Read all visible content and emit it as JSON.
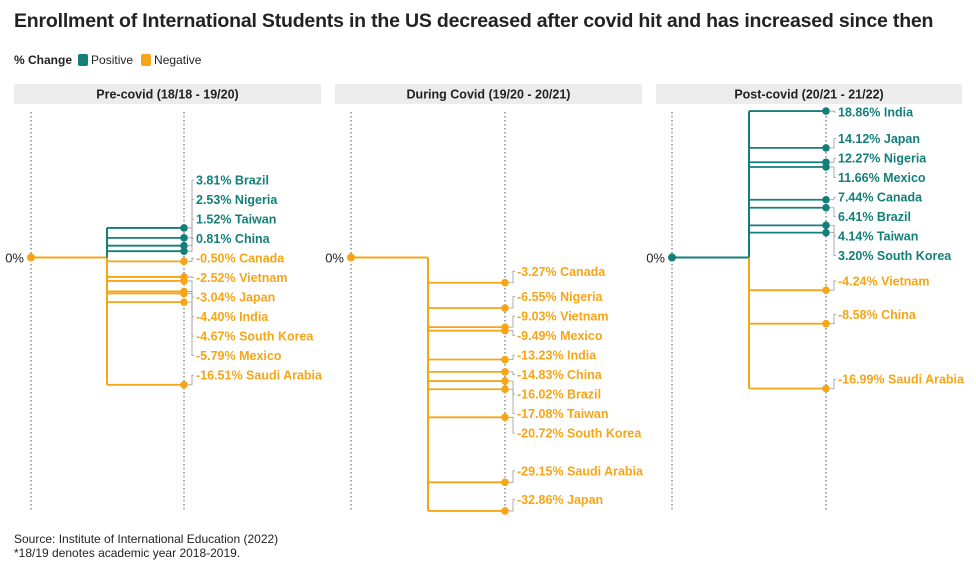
{
  "title": "Enrollment of International Students in the US decreased after covid hit and has increased since then",
  "legend": {
    "title": "% Change",
    "items": [
      {
        "label": "Positive",
        "color": "#137f7a"
      },
      {
        "label": "Negative",
        "color": "#f6a517"
      }
    ]
  },
  "colors": {
    "positive": "#137f7a",
    "negative": "#f6a517",
    "panel_header_bg": "#ececec",
    "gridline": "#7a7a7a"
  },
  "footer": {
    "source": "Source: Institute of International Education (2022)",
    "note": "*18/19 denotes academic year 2018-2019."
  },
  "chart_data": [
    {
      "type": "tree",
      "title": "Pre-covid (18/18 - 19/20)",
      "root_label": "0%",
      "series": [
        {
          "country": "Brazil",
          "value": 3.81,
          "label": "3.81% Brazil"
        },
        {
          "country": "Nigeria",
          "value": 2.53,
          "label": "2.53% Nigeria"
        },
        {
          "country": "Taiwan",
          "value": 1.52,
          "label": "1.52% Taiwan"
        },
        {
          "country": "China",
          "value": 0.81,
          "label": "0.81% China"
        },
        {
          "country": "Canada",
          "value": -0.5,
          "label": "-0.50% Canada"
        },
        {
          "country": "Vietnam",
          "value": -2.52,
          "label": "-2.52% Vietnam"
        },
        {
          "country": "Japan",
          "value": -3.04,
          "label": "-3.04% Japan"
        },
        {
          "country": "India",
          "value": -4.4,
          "label": "-4.40% India"
        },
        {
          "country": "South Korea",
          "value": -4.67,
          "label": "-4.67% South Korea"
        },
        {
          "country": "Mexico",
          "value": -5.79,
          "label": "-5.79% Mexico"
        },
        {
          "country": "Saudi Arabia",
          "value": -16.51,
          "label": "-16.51% Saudi Arabia"
        }
      ]
    },
    {
      "type": "tree",
      "title": "During Covid (19/20 - 20/21)",
      "root_label": "0%",
      "series": [
        {
          "country": "Canada",
          "value": -3.27,
          "label": "-3.27% Canada"
        },
        {
          "country": "Nigeria",
          "value": -6.55,
          "label": "-6.55% Nigeria"
        },
        {
          "country": "Vietnam",
          "value": -9.03,
          "label": "-9.03% Vietnam"
        },
        {
          "country": "Mexico",
          "value": -9.49,
          "label": "-9.49% Mexico"
        },
        {
          "country": "India",
          "value": -13.23,
          "label": "-13.23% India"
        },
        {
          "country": "China",
          "value": -14.83,
          "label": "-14.83% China"
        },
        {
          "country": "Brazil",
          "value": -16.02,
          "label": "-16.02% Brazil"
        },
        {
          "country": "Taiwan",
          "value": -17.08,
          "label": "-17.08% Taiwan"
        },
        {
          "country": "South Korea",
          "value": -20.72,
          "label": "-20.72% South Korea"
        },
        {
          "country": "Saudi Arabia",
          "value": -29.15,
          "label": "-29.15% Saudi Arabia"
        },
        {
          "country": "Japan",
          "value": -32.86,
          "label": "-32.86% Japan"
        }
      ]
    },
    {
      "type": "tree",
      "title": "Post-covid (20/21 - 21/22)",
      "root_label": "0%",
      "series": [
        {
          "country": "India",
          "value": 18.86,
          "label": "18.86% India"
        },
        {
          "country": "Japan",
          "value": 14.12,
          "label": "14.12% Japan"
        },
        {
          "country": "Nigeria",
          "value": 12.27,
          "label": "12.27% Nigeria"
        },
        {
          "country": "Mexico",
          "value": 11.66,
          "label": "11.66% Mexico"
        },
        {
          "country": "Canada",
          "value": 7.44,
          "label": "7.44% Canada"
        },
        {
          "country": "Brazil",
          "value": 6.41,
          "label": "6.41% Brazil"
        },
        {
          "country": "Taiwan",
          "value": 4.14,
          "label": "4.14% Taiwan"
        },
        {
          "country": "South Korea",
          "value": 3.2,
          "label": "3.20% South Korea"
        },
        {
          "country": "Vietnam",
          "value": -4.24,
          "label": "-4.24% Vietnam"
        },
        {
          "country": "China",
          "value": -8.58,
          "label": "-8.58% China"
        },
        {
          "country": "Saudi Arabia",
          "value": -16.99,
          "label": "-16.99% Saudi Arabia"
        }
      ]
    }
  ]
}
